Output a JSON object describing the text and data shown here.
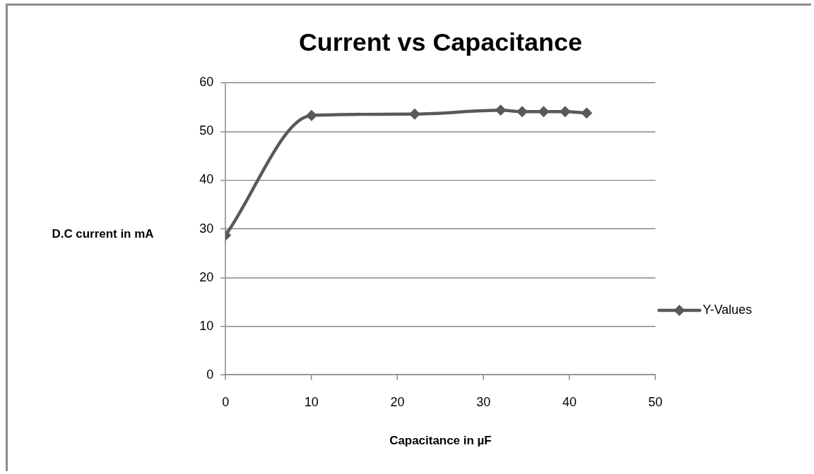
{
  "chart_data": {
    "type": "line",
    "title": "Current vs Capacitance",
    "xlabel": "Capacitance in µF",
    "ylabel": "D.C current in mA",
    "x": [
      0,
      10,
      22,
      32,
      34.5,
      37,
      39.5,
      42
    ],
    "series": [
      {
        "name": "Y-Values",
        "color": "#595959",
        "values": [
          28.7,
          53.3,
          53.6,
          54.4,
          54.1,
          54.1,
          54.1,
          53.8
        ]
      }
    ],
    "xlim": [
      0,
      50
    ],
    "xticks": [
      0,
      10,
      20,
      30,
      40,
      50
    ],
    "ylim": [
      0,
      60
    ],
    "yticks": [
      0,
      10,
      20,
      30,
      40,
      50,
      60
    ],
    "grid": "y",
    "legend": "right",
    "marker": "diamond",
    "line_style": "solid"
  }
}
